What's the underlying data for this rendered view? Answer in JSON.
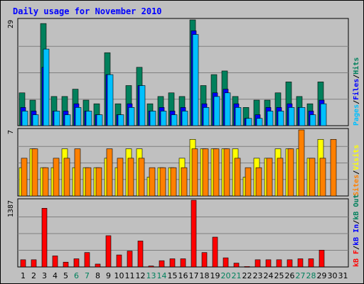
{
  "title": "Daily usage for November 2010",
  "colors": {
    "hits": "#00805c",
    "files": "#0000ff",
    "pages": "#00c0ff",
    "visits": "#ffff00",
    "sites": "#ff8000",
    "kb_in": "#0000ff",
    "kb_out": "#00805c",
    "kb_f": "#ff0000",
    "weekend_label": "#00805c",
    "day_label": "#000000",
    "title": "#0000ff"
  },
  "chart_data": [
    {
      "type": "bar",
      "panel": "hits_files_pages",
      "ylim": [
        0,
        29
      ],
      "ytick_label": "29",
      "legend_placement": "right-vertical",
      "legend": [
        {
          "name": "Pages",
          "color": "#00c0ff"
        },
        {
          "name": "/",
          "color": "#000000"
        },
        {
          "name": "Files",
          "color": "#0000ff"
        },
        {
          "name": "/",
          "color": "#000000"
        },
        {
          "name": "Hits",
          "color": "#00805c"
        }
      ],
      "categories": [
        "1",
        "2",
        "3",
        "4",
        "5",
        "6",
        "7",
        "8",
        "9",
        "10",
        "11",
        "12",
        "13",
        "14",
        "15",
        "16",
        "17",
        "18",
        "19",
        "20",
        "21",
        "22",
        "23",
        "24",
        "25",
        "26",
        "27",
        "28",
        "29",
        "30",
        "31"
      ],
      "series": [
        {
          "name": "Hits",
          "color": "#00805c",
          "values": [
            9,
            7,
            28,
            8,
            8,
            10,
            7,
            6,
            20,
            6,
            11,
            16,
            6,
            8,
            9,
            8,
            29,
            11,
            14,
            15,
            8,
            5,
            7,
            7,
            9,
            12,
            8,
            6,
            12,
            0,
            0
          ]
        },
        {
          "name": "Files",
          "color": "#0000ff",
          "values": [
            5,
            4,
            16,
            4,
            4,
            6,
            4,
            3,
            14,
            3,
            6,
            11,
            4,
            5,
            4,
            5,
            26,
            6,
            9,
            10,
            6,
            2,
            3,
            5,
            5,
            6,
            5,
            4,
            7,
            0,
            0
          ]
        },
        {
          "name": "Pages",
          "color": "#00c0ff",
          "values": [
            4,
            3,
            21,
            4,
            3,
            5,
            4,
            3,
            14,
            3,
            5,
            11,
            4,
            4,
            3,
            4,
            25,
            5,
            8,
            9,
            5,
            2,
            2,
            4,
            4,
            5,
            5,
            3,
            6,
            0,
            0
          ]
        }
      ]
    },
    {
      "type": "bar",
      "panel": "visits_sites",
      "ylim": [
        0,
        7
      ],
      "ytick_label": "7",
      "legend_placement": "right-vertical",
      "legend": [
        {
          "name": "Sites",
          "color": "#ff8000"
        },
        {
          "name": "/",
          "color": "#000000"
        },
        {
          "name": "Visits",
          "color": "#ffff00"
        }
      ],
      "categories": [
        "1",
        "2",
        "3",
        "4",
        "5",
        "6",
        "7",
        "8",
        "9",
        "10",
        "11",
        "12",
        "13",
        "14",
        "15",
        "16",
        "17",
        "18",
        "19",
        "20",
        "21",
        "22",
        "23",
        "24",
        "25",
        "26",
        "27",
        "28",
        "29",
        "30",
        "31"
      ],
      "series": [
        {
          "name": "Visits",
          "color": "#ffff00",
          "values": [
            3,
            5,
            3,
            3,
            5,
            3,
            3,
            3,
            4,
            3,
            5,
            5,
            2,
            3,
            3,
            4,
            6,
            5,
            5,
            5,
            5,
            2,
            4,
            4,
            5,
            5,
            5,
            4,
            6,
            0,
            0
          ]
        },
        {
          "name": "Sites",
          "color": "#ff8000",
          "values": [
            4,
            5,
            3,
            4,
            4,
            5,
            3,
            3,
            5,
            4,
            4,
            4,
            3,
            3,
            3,
            3,
            5,
            5,
            5,
            5,
            4,
            3,
            3,
            4,
            4,
            5,
            7,
            4,
            4,
            6,
            0
          ]
        }
      ]
    },
    {
      "type": "bar",
      "panel": "kbytes",
      "ylim": [
        0,
        1387
      ],
      "ytick_label": "1387",
      "legend_placement": "right-vertical",
      "legend": [
        {
          "name": "kB F",
          "color": "#ff0000"
        },
        {
          "name": "/",
          "color": "#000000"
        },
        {
          "name": "kB In",
          "color": "#0000ff"
        },
        {
          "name": "/",
          "color": "#000000"
        },
        {
          "name": "kB Out",
          "color": "#00805c"
        }
      ],
      "categories": [
        "1",
        "2",
        "3",
        "4",
        "5",
        "6",
        "7",
        "8",
        "9",
        "10",
        "11",
        "12",
        "13",
        "14",
        "15",
        "16",
        "17",
        "18",
        "19",
        "20",
        "21",
        "22",
        "23",
        "24",
        "25",
        "26",
        "27",
        "28",
        "29",
        "30",
        "31"
      ],
      "series": [
        {
          "name": "kB F",
          "color": "#ff0000",
          "values": [
            150,
            150,
            1220,
            230,
            100,
            170,
            300,
            60,
            650,
            250,
            330,
            540,
            20,
            130,
            170,
            170,
            1387,
            300,
            620,
            190,
            80,
            10,
            150,
            150,
            150,
            150,
            170,
            170,
            350,
            0,
            0
          ]
        }
      ]
    }
  ],
  "days": [
    {
      "label": "1",
      "weekend": false
    },
    {
      "label": "2",
      "weekend": false
    },
    {
      "label": "3",
      "weekend": false
    },
    {
      "label": "4",
      "weekend": false
    },
    {
      "label": "5",
      "weekend": false
    },
    {
      "label": "6",
      "weekend": true
    },
    {
      "label": "7",
      "weekend": true
    },
    {
      "label": "8",
      "weekend": false
    },
    {
      "label": "9",
      "weekend": false
    },
    {
      "label": "10",
      "weekend": false
    },
    {
      "label": "11",
      "weekend": false
    },
    {
      "label": "12",
      "weekend": false
    },
    {
      "label": "13",
      "weekend": true
    },
    {
      "label": "14",
      "weekend": true
    },
    {
      "label": "15",
      "weekend": false
    },
    {
      "label": "16",
      "weekend": false
    },
    {
      "label": "17",
      "weekend": false
    },
    {
      "label": "18",
      "weekend": false
    },
    {
      "label": "19",
      "weekend": false
    },
    {
      "label": "20",
      "weekend": true
    },
    {
      "label": "21",
      "weekend": true
    },
    {
      "label": "22",
      "weekend": false
    },
    {
      "label": "23",
      "weekend": false
    },
    {
      "label": "24",
      "weekend": false
    },
    {
      "label": "25",
      "weekend": false
    },
    {
      "label": "26",
      "weekend": false
    },
    {
      "label": "27",
      "weekend": true
    },
    {
      "label": "28",
      "weekend": true
    },
    {
      "label": "29",
      "weekend": false
    },
    {
      "label": "30",
      "weekend": false
    },
    {
      "label": "31",
      "weekend": false
    }
  ]
}
